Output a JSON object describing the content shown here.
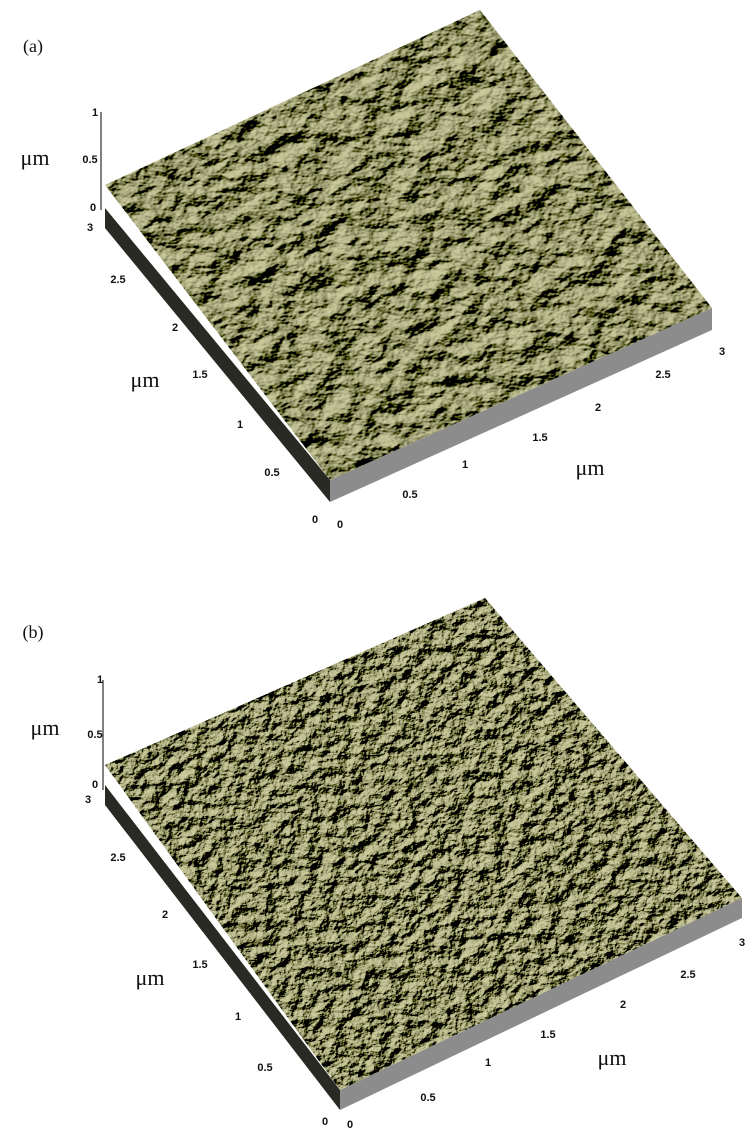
{
  "panels": [
    {
      "label": "(a)",
      "z_unit": "μm",
      "y_unit": "μm",
      "x_unit": "μm",
      "z_ticks": [
        0,
        0.5,
        1
      ],
      "y_ticks": [
        0,
        0.5,
        1,
        1.5,
        2,
        2.5,
        3
      ],
      "x_ticks": [
        0,
        0.5,
        1,
        1.5,
        2,
        2.5,
        3
      ]
    },
    {
      "label": "(b)",
      "z_unit": "μm",
      "y_unit": "μm",
      "x_unit": "μm",
      "z_ticks": [
        0,
        0.5,
        1
      ],
      "y_ticks": [
        0,
        0.5,
        1,
        1.5,
        2,
        2.5,
        3
      ],
      "x_ticks": [
        0,
        0.5,
        1,
        1.5,
        2,
        2.5,
        3
      ]
    }
  ]
}
